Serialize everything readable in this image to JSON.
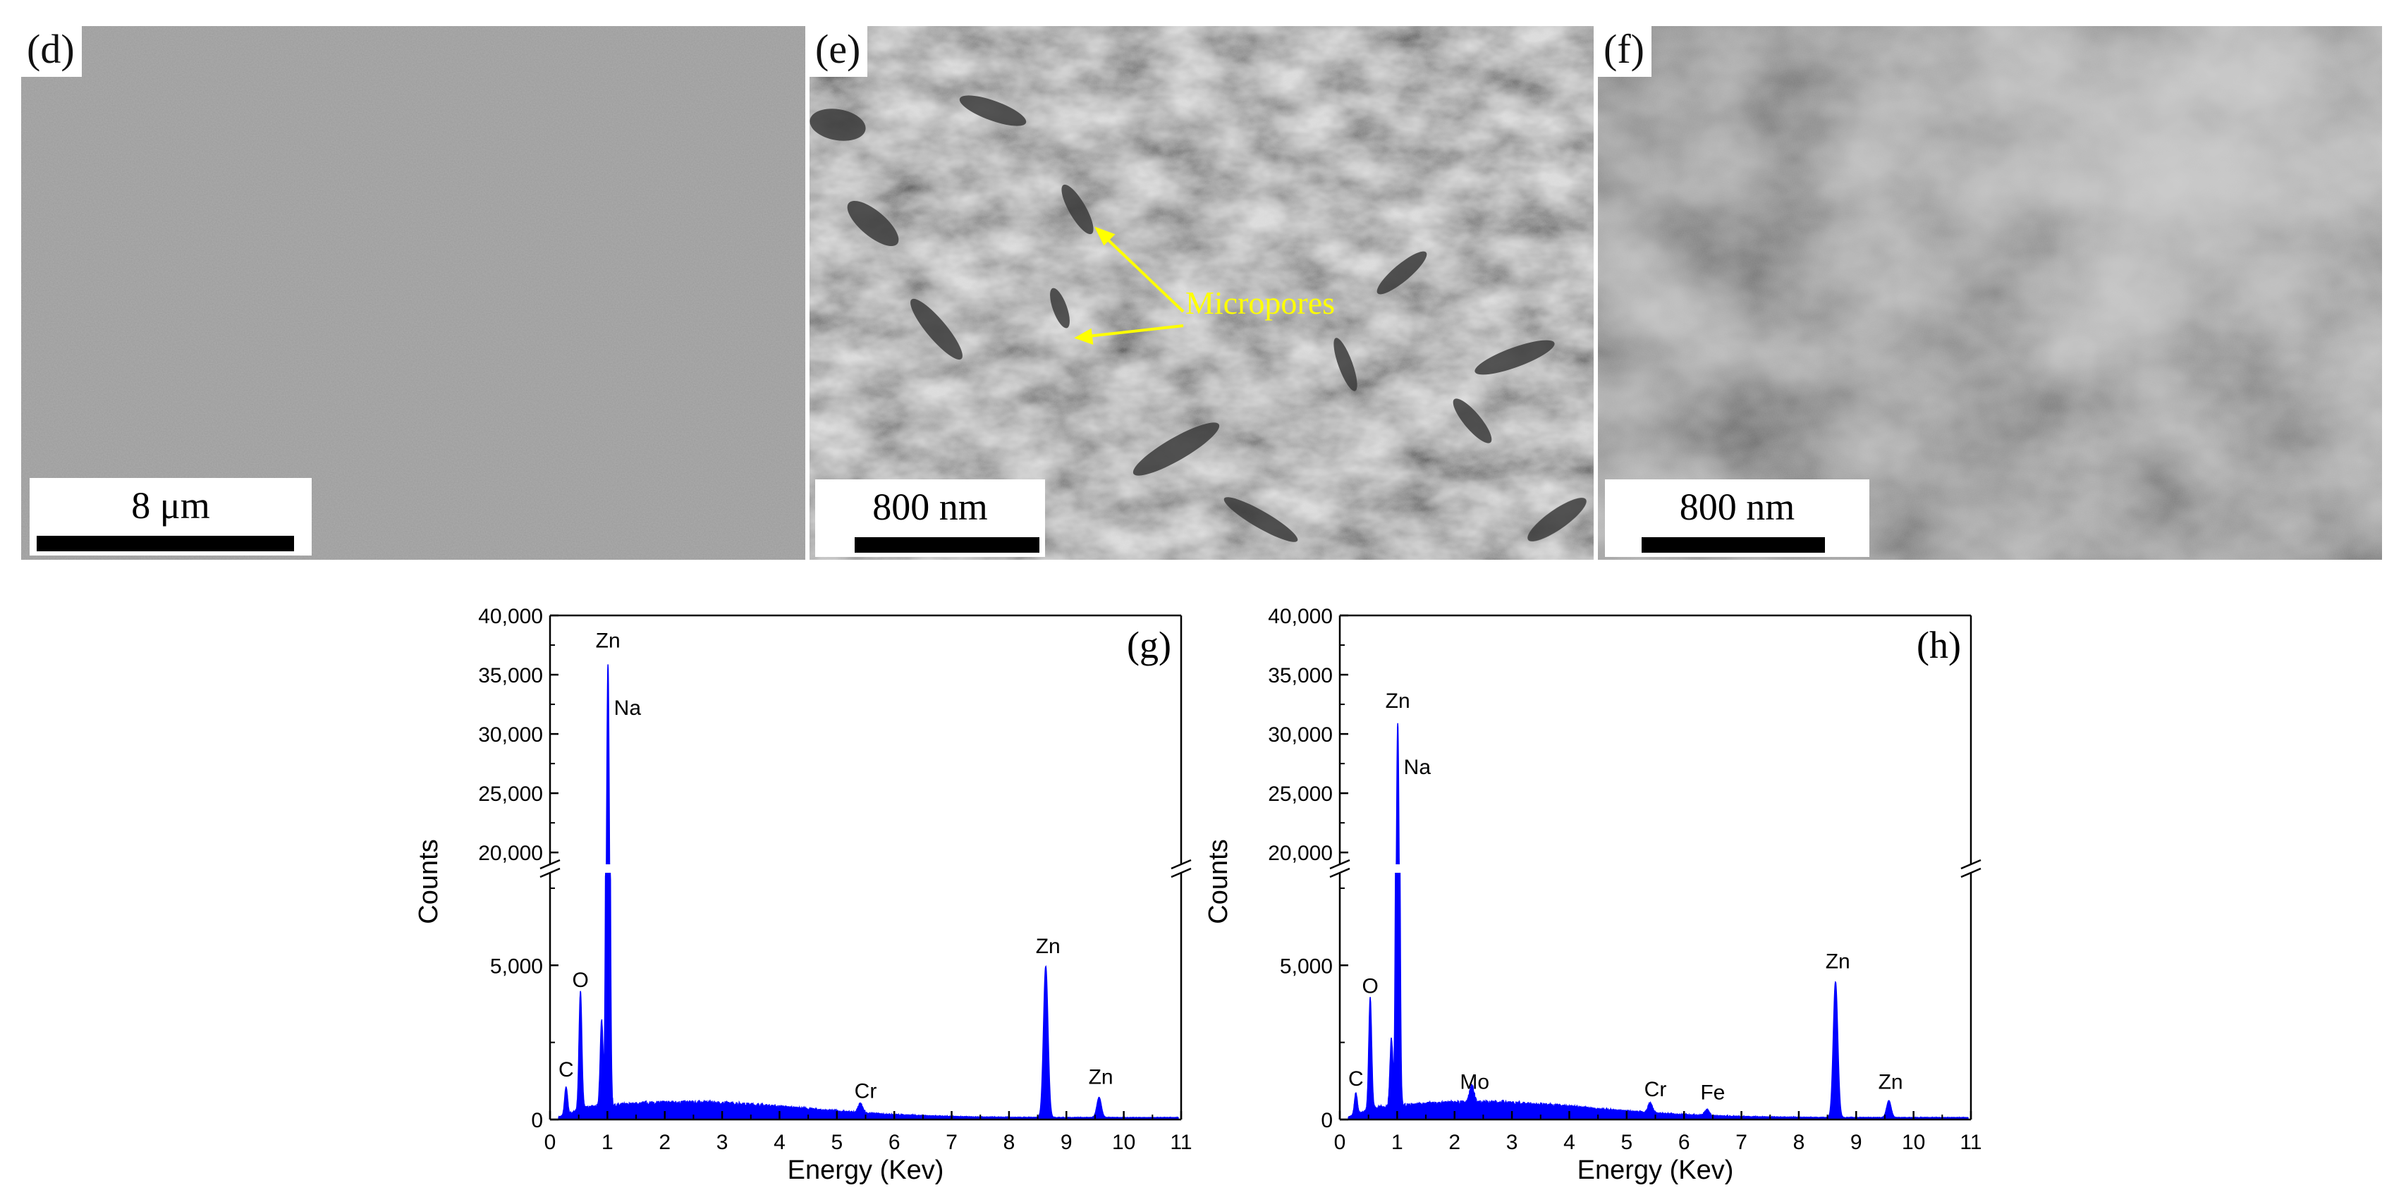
{
  "sem_panels": [
    {
      "label": "(d)",
      "scale_label": "8 μm"
    },
    {
      "label": "(e)",
      "scale_label": "800 nm",
      "annotation": "Micropores"
    },
    {
      "label": "(f)",
      "scale_label": "800 nm"
    }
  ],
  "chart_data": [
    {
      "type": "area",
      "panel_label": "(g)",
      "xlabel": "Energy (Kev)",
      "ylabel": "Counts",
      "xlim": [
        0,
        11
      ],
      "ylim": [
        0,
        40000
      ],
      "axis_break": [
        8000,
        19000
      ],
      "x_ticks": [
        0,
        1,
        2,
        3,
        4,
        5,
        6,
        7,
        8,
        9,
        10,
        11
      ],
      "y_ticks_lower": [
        0,
        5000
      ],
      "y_ticks_upper": [
        20000,
        25000,
        30000,
        35000,
        40000
      ],
      "y_tick_labels_lower": [
        "0",
        "5,000"
      ],
      "y_tick_labels_upper": [
        "20,000",
        "25,000",
        "30,000",
        "35,000",
        "40,000"
      ],
      "color": "#0000ff",
      "series": [
        {
          "peaks": [
            {
              "element": "C",
              "energy": 0.28,
              "counts": 900
            },
            {
              "element": "O",
              "energy": 0.53,
              "counts": 3800
            },
            {
              "element": "Na",
              "energy": 0.9,
              "counts": 2800
            },
            {
              "element": "Zn",
              "energy": 1.01,
              "counts": 35500
            },
            {
              "element": "Cr",
              "energy": 5.41,
              "counts": 300
            },
            {
              "element": "Zn",
              "energy": 8.64,
              "counts": 4900
            },
            {
              "element": "Zn",
              "energy": 9.57,
              "counts": 650
            }
          ]
        }
      ],
      "peak_labels": [
        {
          "text": "C",
          "energy": 0.28,
          "counts": 1400
        },
        {
          "text": "O",
          "energy": 0.53,
          "counts": 4300
        },
        {
          "text": "Zn",
          "energy": 1.01,
          "counts": 37300
        },
        {
          "text": "Na",
          "energy": 1.35,
          "counts": 31600
        },
        {
          "text": "Cr",
          "energy": 5.5,
          "counts": 700
        },
        {
          "text": "Zn",
          "energy": 8.68,
          "counts": 5400
        },
        {
          "text": "Zn",
          "energy": 9.6,
          "counts": 1150
        }
      ]
    },
    {
      "type": "area",
      "panel_label": "(h)",
      "xlabel": "Energy (Kev)",
      "ylabel": "Counts",
      "xlim": [
        0,
        11
      ],
      "ylim": [
        0,
        40000
      ],
      "axis_break": [
        8000,
        19000
      ],
      "x_ticks": [
        0,
        1,
        2,
        3,
        4,
        5,
        6,
        7,
        8,
        9,
        10,
        11
      ],
      "y_ticks_lower": [
        0,
        5000
      ],
      "y_ticks_upper": [
        20000,
        25000,
        30000,
        35000,
        40000
      ],
      "y_tick_labels_lower": [
        "0",
        "5,000"
      ],
      "y_tick_labels_upper": [
        "20,000",
        "25,000",
        "30,000",
        "35,000",
        "40,000"
      ],
      "color": "#0000ff",
      "series": [
        {
          "peaks": [
            {
              "element": "C",
              "energy": 0.28,
              "counts": 700
            },
            {
              "element": "O",
              "energy": 0.53,
              "counts": 3600
            },
            {
              "element": "Na",
              "energy": 0.9,
              "counts": 2200
            },
            {
              "element": "Zn",
              "energy": 1.01,
              "counts": 30500
            },
            {
              "element": "Mo",
              "energy": 2.3,
              "counts": 550
            },
            {
              "element": "Cr",
              "energy": 5.41,
              "counts": 320
            },
            {
              "element": "Fe",
              "energy": 6.4,
              "counts": 200
            },
            {
              "element": "Zn",
              "energy": 8.64,
              "counts": 4400
            },
            {
              "element": "Zn",
              "energy": 9.57,
              "counts": 550
            }
          ]
        }
      ],
      "peak_labels": [
        {
          "text": "C",
          "energy": 0.28,
          "counts": 1100
        },
        {
          "text": "O",
          "energy": 0.53,
          "counts": 4100
        },
        {
          "text": "Zn",
          "energy": 1.01,
          "counts": 32200
        },
        {
          "text": "Na",
          "energy": 1.35,
          "counts": 26600
        },
        {
          "text": "Mo",
          "energy": 2.35,
          "counts": 1000
        },
        {
          "text": "Cr",
          "energy": 5.5,
          "counts": 750
        },
        {
          "text": "Fe",
          "energy": 6.5,
          "counts": 650
        },
        {
          "text": "Zn",
          "energy": 8.68,
          "counts": 4900
        },
        {
          "text": "Zn",
          "energy": 9.6,
          "counts": 1000
        }
      ]
    }
  ]
}
